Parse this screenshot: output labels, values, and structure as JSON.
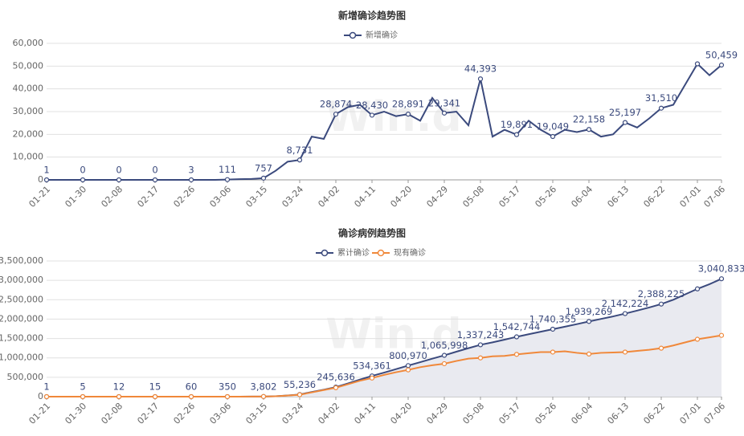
{
  "chart_data": [
    {
      "type": "line",
      "title": "新增确诊趋势图",
      "watermark": "Win.d",
      "categories": [
        "01-21",
        null,
        null,
        "01-30",
        null,
        null,
        "02-08",
        null,
        null,
        "02-17",
        null,
        null,
        "02-26",
        null,
        null,
        "03-06",
        null,
        null,
        "03-15",
        null,
        null,
        "03-24",
        null,
        null,
        "04-02",
        null,
        null,
        "04-11",
        null,
        null,
        "04-20",
        null,
        null,
        "04-29",
        null,
        null,
        "05-08",
        null,
        null,
        "05-17",
        null,
        null,
        "05-26",
        null,
        null,
        "06-04",
        null,
        null,
        "06-13",
        null,
        null,
        "06-22",
        null,
        null,
        "07-01",
        null,
        "07-06"
      ],
      "series": [
        {
          "name": "新增确诊",
          "color": "#3b4a7d",
          "values": [
            1,
            0,
            0,
            0,
            0,
            0,
            0,
            0,
            0,
            0,
            0,
            1,
            3,
            5,
            10,
            111,
            300,
            400,
            757,
            4000,
            8000,
            8731,
            19000,
            18000,
            28874,
            32000,
            33000,
            28430,
            30000,
            28000,
            28891,
            26000,
            36000,
            29341,
            30000,
            24000,
            44393,
            19000,
            22000,
            19891,
            26000,
            22000,
            19049,
            22000,
            21000,
            22158,
            19000,
            20000,
            25197,
            23000,
            27000,
            31510,
            33000,
            42000,
            51000,
            46000,
            50459
          ],
          "value_labels": [
            "1",
            null,
            null,
            "0",
            null,
            null,
            "0",
            null,
            null,
            "0",
            null,
            null,
            "3",
            null,
            null,
            "111",
            null,
            null,
            "757",
            null,
            null,
            "8,731",
            null,
            null,
            "28,874",
            null,
            null,
            "28,430",
            null,
            null,
            "28,891",
            null,
            null,
            "29,341",
            null,
            null,
            "44,393",
            null,
            null,
            "19,891",
            null,
            null,
            "19,049",
            null,
            null,
            "22,158",
            null,
            null,
            "25,197",
            null,
            null,
            "31,510",
            null,
            null,
            null,
            null,
            "50,459"
          ]
        }
      ],
      "ylim": [
        0,
        60000
      ],
      "yticks": [
        0,
        {
          "value": 10000,
          "label": "10,000"
        },
        {
          "value": 20000,
          "label": "20,000"
        },
        {
          "value": 30000,
          "label": "30,000"
        },
        {
          "value": 40000,
          "label": "40,000"
        },
        {
          "value": 50000,
          "label": "50,000"
        },
        {
          "value": 60000,
          "label": "60,000"
        }
      ],
      "grid": true
    },
    {
      "type": "line",
      "title": "确诊病例趋势图",
      "watermark": "Win.d",
      "categories": [
        "01-21",
        null,
        null,
        "01-30",
        null,
        null,
        "02-08",
        null,
        null,
        "02-17",
        null,
        null,
        "02-26",
        null,
        null,
        "03-06",
        null,
        null,
        "03-15",
        null,
        null,
        "03-24",
        null,
        null,
        "04-02",
        null,
        null,
        "04-11",
        null,
        null,
        "04-20",
        null,
        null,
        "04-29",
        null,
        null,
        "05-08",
        null,
        null,
        "05-17",
        null,
        null,
        "05-26",
        null,
        null,
        "06-04",
        null,
        null,
        "06-13",
        null,
        null,
        "06-22",
        null,
        null,
        "07-01",
        null,
        "07-06"
      ],
      "series": [
        {
          "name": "累计确诊",
          "color": "#3b4a7d",
          "fill_area": true,
          "area_color": "#e9eaf0",
          "values": [
            1,
            2,
            3,
            5,
            6,
            8,
            12,
            13,
            14,
            15,
            20,
            40,
            60,
            100,
            200,
            350,
            800,
            2000,
            3802,
            10000,
            30000,
            55236,
            120000,
            180000,
            245636,
            340000,
            440000,
            534361,
            620000,
            710000,
            800970,
            890000,
            980000,
            1065998,
            1160000,
            1250000,
            1337243,
            1400000,
            1470000,
            1542744,
            1610000,
            1675000,
            1740355,
            1805000,
            1870000,
            1939269,
            2005000,
            2070000,
            2142224,
            2220000,
            2300000,
            2388225,
            2500000,
            2640000,
            2780000,
            2900000,
            3040833
          ],
          "value_labels": [
            "1",
            null,
            null,
            "5",
            null,
            null,
            "12",
            null,
            null,
            "15",
            null,
            null,
            "60",
            null,
            null,
            "350",
            null,
            null,
            "3,802",
            null,
            null,
            "55,236",
            null,
            null,
            "245,636",
            null,
            null,
            "534,361",
            null,
            null,
            "800,970",
            null,
            null,
            "1,065,998",
            null,
            null,
            "1,337,243",
            null,
            null,
            "1,542,744",
            null,
            null,
            "1,740,355",
            null,
            null,
            "1,939,269",
            null,
            null,
            "2,142,224",
            null,
            null,
            "2,388,225",
            null,
            null,
            null,
            null,
            "3,040,833"
          ]
        },
        {
          "name": "现有确诊",
          "color": "#f0883a",
          "values": [
            1,
            2,
            3,
            5,
            6,
            8,
            12,
            13,
            14,
            15,
            20,
            40,
            60,
            100,
            200,
            350,
            790,
            1980,
            3700,
            9800,
            29000,
            50000,
            110000,
            170000,
            230000,
            320000,
            410000,
            480000,
            560000,
            630000,
            690000,
            760000,
            810000,
            850000,
            920000,
            980000,
            1000000,
            1040000,
            1050000,
            1090000,
            1120000,
            1150000,
            1150000,
            1170000,
            1130000,
            1100000,
            1130000,
            1140000,
            1150000,
            1180000,
            1210000,
            1250000,
            1320000,
            1400000,
            1480000,
            1530000,
            1580000
          ]
        }
      ],
      "ylim": [
        0,
        3500000
      ],
      "yticks": [
        0,
        {
          "value": 500000,
          "label": "500,000"
        },
        {
          "value": 1000000,
          "label": "1,000,000"
        },
        {
          "value": 1500000,
          "label": "1,500,000"
        },
        {
          "value": 2000000,
          "label": "2,000,000"
        },
        {
          "value": 2500000,
          "label": "2,500,000"
        },
        {
          "value": 3000000,
          "label": "3,000,000"
        },
        {
          "value": 3500000,
          "label": "3,500,000"
        }
      ],
      "grid": true
    }
  ]
}
